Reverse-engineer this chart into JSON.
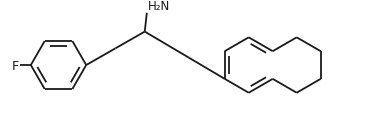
{
  "bg_color": "#ffffff",
  "line_color": "#1a1a1a",
  "line_width": 1.3,
  "dbo": 0.045,
  "font_size_F": 9,
  "font_size_NH2": 8.5,
  "F_label": "F",
  "NH2_label": "H₂N",
  "figsize": [
    3.71,
    1.16
  ],
  "dpi": 100
}
